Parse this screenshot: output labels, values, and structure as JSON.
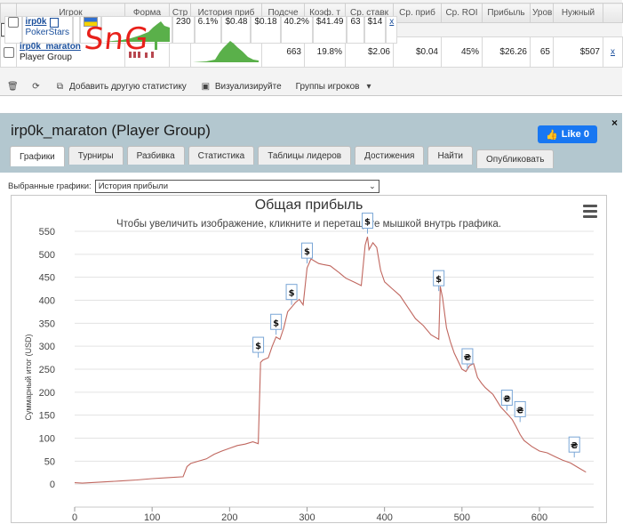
{
  "table": {
    "headers": [
      "",
      "Игрок",
      "Форма",
      "Стр",
      "История приб",
      "Подсче",
      "Коэф. т",
      "Ср. ставк",
      "Ср. приб",
      "Ср. ROI",
      "Прибыль",
      "Уров",
      "Нужный",
      ""
    ],
    "rows": [
      {
        "name": "irp0k",
        "site": "PokerStars",
        "count": "230",
        "coef": "6.1%",
        "avg_stake": "$0.48",
        "avg_profit": "$0.18",
        "avg_roi": "40.2%",
        "profit": "$41.49",
        "level": "63",
        "needed": "$14",
        "x": "x"
      },
      {
        "name": "irp0k_maraton",
        "site": "Player Group",
        "count": "663",
        "coef": "19.8%",
        "avg_stake": "$2.06",
        "avg_profit": "$0.04",
        "avg_roi": "45%",
        "profit": "$26.26",
        "level": "65",
        "needed": "$507",
        "x": "x"
      }
    ],
    "annotation": "SnG"
  },
  "toolbar": {
    "add_stat": "Добавить другую статистику",
    "visualize": "Визуализируйте",
    "groups": "Группы игроков"
  },
  "panel": {
    "title": "irp0k_maraton (Player Group)",
    "like": "Like 0",
    "close": "×",
    "tabs": [
      "Графики",
      "Турниры",
      "Разбивка",
      "Статистика",
      "Таблицы лидеров",
      "Достижения",
      "Найти",
      "Опубликовать"
    ],
    "selected_label": "Выбранные графики:",
    "selected_value": "История прибыли"
  },
  "chart_data": {
    "type": "line",
    "title": "Общая прибыль",
    "subtitle": "Чтобы увеличить изображение, кликните и перетащите мышкой внутрь графика.",
    "ylabel": "Суммарный итог (USD)",
    "xlabel": "",
    "xlim": [
      0,
      670
    ],
    "ylim": [
      -50,
      550
    ],
    "xticks": [
      0,
      100,
      200,
      300,
      400,
      500,
      600
    ],
    "yticks": [
      0,
      50,
      100,
      150,
      200,
      250,
      300,
      350,
      400,
      450,
      500,
      550
    ],
    "grid": "horizontal",
    "color": "#c0675f",
    "series": [
      {
        "x": [
          0,
          10,
          20,
          40,
          60,
          80,
          100,
          120,
          140,
          145,
          150,
          170,
          180,
          190,
          200,
          210,
          220,
          230,
          237,
          240,
          243,
          250,
          255,
          260,
          265,
          270,
          275,
          280,
          285,
          290,
          295,
          300,
          305,
          310,
          315,
          320,
          330,
          340,
          350,
          360,
          370,
          375,
          378,
          380,
          385,
          390,
          395,
          400,
          410,
          420,
          430,
          440,
          450,
          460,
          470,
          472,
          475,
          480,
          485,
          490,
          500,
          505,
          510,
          515,
          520,
          525,
          530,
          540,
          550,
          560,
          565,
          570,
          575,
          580,
          590,
          600,
          610,
          620,
          630,
          640,
          650,
          660
        ],
        "y": [
          3,
          2,
          3,
          5,
          7,
          9,
          12,
          14,
          16,
          38,
          45,
          55,
          65,
          72,
          78,
          84,
          87,
          92,
          88,
          265,
          270,
          275,
          300,
          320,
          315,
          340,
          375,
          385,
          395,
          402,
          390,
          470,
          490,
          485,
          480,
          478,
          475,
          462,
          448,
          440,
          432,
          520,
          538,
          510,
          525,
          515,
          465,
          440,
          425,
          410,
          385,
          360,
          345,
          325,
          315,
          430,
          405,
          340,
          310,
          285,
          250,
          245,
          258,
          262,
          232,
          220,
          210,
          195,
          168,
          150,
          140,
          125,
          108,
          95,
          82,
          72,
          68,
          60,
          52,
          46,
          36,
          26
        ]
      }
    ],
    "markers": [
      {
        "x": 237,
        "y": 275,
        "label": "$"
      },
      {
        "x": 260,
        "y": 325,
        "label": "$"
      },
      {
        "x": 280,
        "y": 390,
        "label": "$"
      },
      {
        "x": 300,
        "y": 480,
        "label": "$"
      },
      {
        "x": 378,
        "y": 545,
        "label": "$"
      },
      {
        "x": 470,
        "y": 420,
        "label": "$"
      },
      {
        "x": 507,
        "y": 250,
        "label": "₴"
      },
      {
        "x": 558,
        "y": 160,
        "label": "₴"
      },
      {
        "x": 575,
        "y": 135,
        "label": "₴"
      },
      {
        "x": 645,
        "y": 58,
        "label": "₴"
      }
    ]
  }
}
